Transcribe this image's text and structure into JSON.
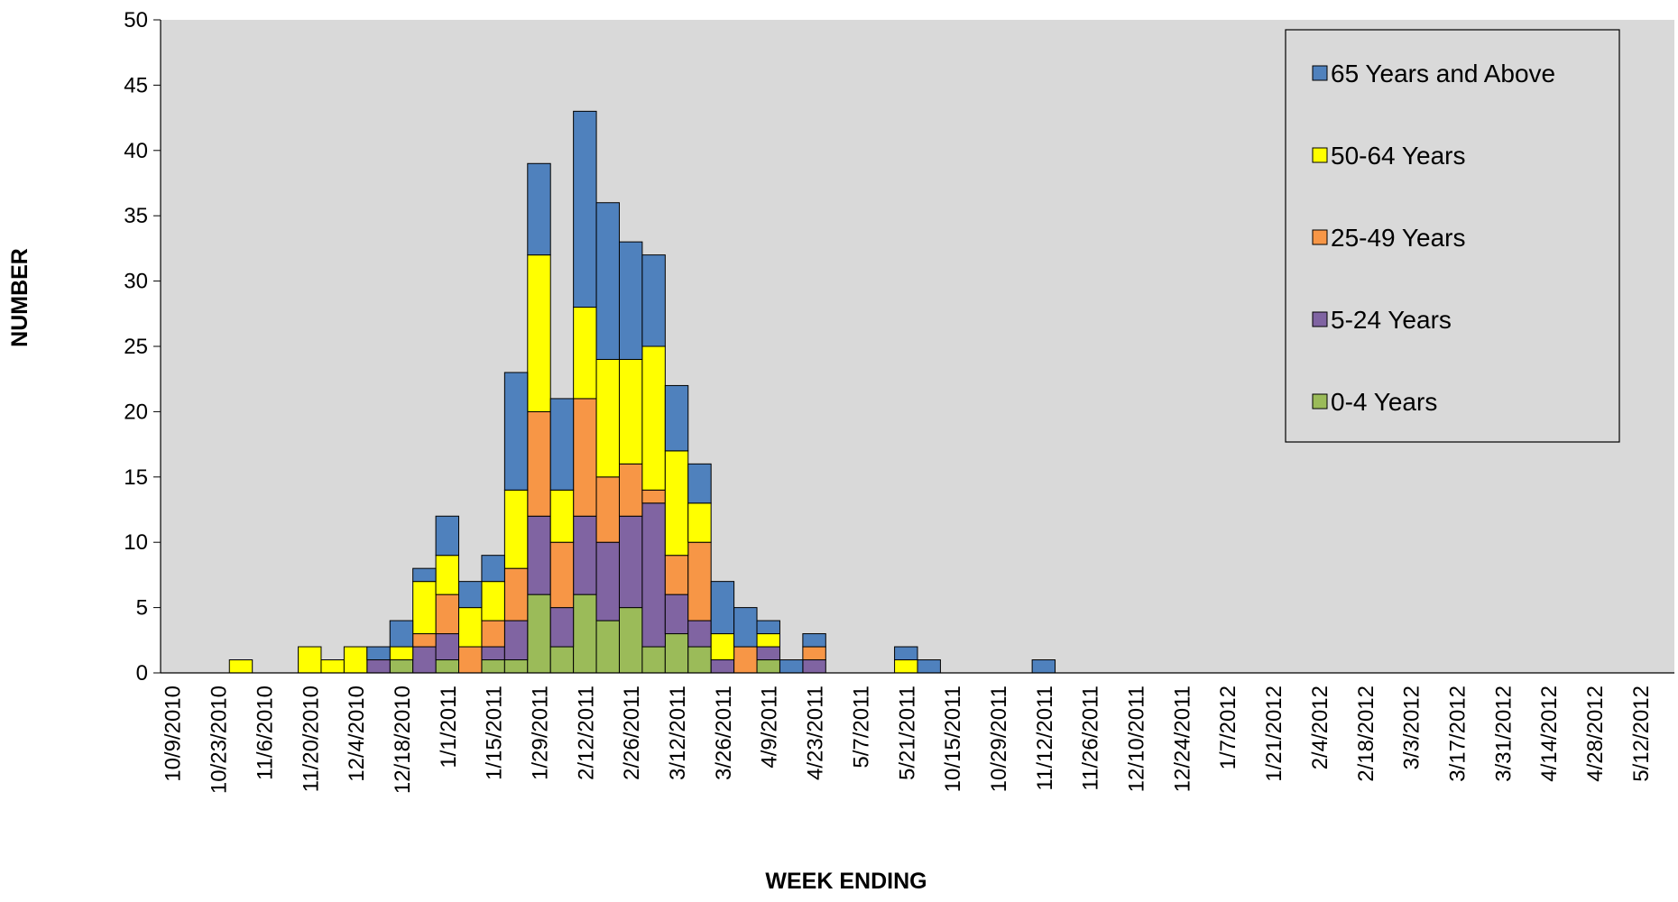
{
  "chart_data": {
    "type": "stacked_bar",
    "x_label": "WEEK ENDING",
    "y_label": "NUMBER",
    "categories": [
      "10/9/2010",
      null,
      "10/23/2010",
      null,
      "11/6/2010",
      null,
      "11/20/2010",
      null,
      "12/4/2010",
      null,
      "12/18/2010",
      null,
      "1/1/2011",
      null,
      "1/15/2011",
      null,
      "1/29/2011",
      null,
      "2/12/2011",
      null,
      "2/26/2011",
      null,
      "3/12/2011",
      null,
      "3/26/2011",
      null,
      "4/9/2011",
      null,
      "4/23/2011",
      null,
      "5/7/2011",
      null,
      "5/21/2011",
      null,
      "10/15/2011",
      null,
      "10/29/2011",
      null,
      "11/12/2011",
      null,
      "11/26/2011",
      null,
      "12/10/2011",
      null,
      "12/24/2011",
      null,
      "1/7/2012",
      null,
      "1/21/2012",
      null,
      "2/4/2012",
      null,
      "2/18/2012",
      null,
      "3/3/2012",
      null,
      "3/17/2012",
      null,
      "3/31/2012",
      null,
      "4/14/2012",
      null,
      "4/28/2012",
      null,
      "5/12/2012",
      null
    ],
    "series": [
      {
        "name": "0-4 Years",
        "color": "#9bbb59",
        "values": [
          0,
          0,
          0,
          0,
          0,
          0,
          0,
          0,
          0,
          0,
          1,
          0,
          1,
          0,
          1,
          1,
          6,
          2,
          6,
          4,
          5,
          2,
          3,
          2,
          0,
          0,
          1,
          0,
          0,
          0,
          0,
          0,
          0,
          0,
          0,
          0,
          0,
          0,
          0,
          0,
          0,
          0,
          0,
          0,
          0,
          0,
          0,
          0,
          0,
          0,
          0,
          0,
          0,
          0,
          0,
          0,
          0,
          0,
          0,
          0,
          0,
          0,
          0,
          0,
          0,
          0
        ]
      },
      {
        "name": "5-24 Years",
        "color": "#8064a2",
        "values": [
          0,
          0,
          0,
          0,
          0,
          0,
          0,
          0,
          0,
          1,
          0,
          2,
          2,
          0,
          1,
          3,
          6,
          3,
          6,
          6,
          7,
          11,
          3,
          2,
          1,
          0,
          1,
          0,
          1,
          0,
          0,
          0,
          0,
          0,
          0,
          0,
          0,
          0,
          0,
          0,
          0,
          0,
          0,
          0,
          0,
          0,
          0,
          0,
          0,
          0,
          0,
          0,
          0,
          0,
          0,
          0,
          0,
          0,
          0,
          0,
          0,
          0,
          0,
          0,
          0,
          0
        ]
      },
      {
        "name": "25-49 Years",
        "color": "#f79646",
        "values": [
          0,
          0,
          0,
          0,
          0,
          0,
          0,
          0,
          0,
          0,
          0,
          1,
          3,
          2,
          2,
          4,
          8,
          5,
          9,
          5,
          4,
          1,
          3,
          6,
          0,
          2,
          0,
          0,
          1,
          0,
          0,
          0,
          0,
          0,
          0,
          0,
          0,
          0,
          0,
          0,
          0,
          0,
          0,
          0,
          0,
          0,
          0,
          0,
          0,
          0,
          0,
          0,
          0,
          0,
          0,
          0,
          0,
          0,
          0,
          0,
          0,
          0,
          0,
          0,
          0,
          0
        ]
      },
      {
        "name": "50-64 Years",
        "color": "#ffff00",
        "values": [
          0,
          0,
          0,
          1,
          0,
          0,
          2,
          1,
          2,
          0,
          1,
          4,
          3,
          3,
          3,
          6,
          12,
          4,
          7,
          9,
          8,
          11,
          8,
          3,
          2,
          0,
          1,
          0,
          0,
          0,
          0,
          0,
          1,
          0,
          0,
          0,
          0,
          0,
          0,
          0,
          0,
          0,
          0,
          0,
          0,
          0,
          0,
          0,
          0,
          0,
          0,
          0,
          0,
          0,
          0,
          0,
          0,
          0,
          0,
          0,
          0,
          0,
          0,
          0,
          0,
          0
        ]
      },
      {
        "name": "65 Years and Above",
        "color": "#4f81bd",
        "values": [
          0,
          0,
          0,
          0,
          0,
          0,
          0,
          0,
          0,
          1,
          2,
          1,
          3,
          2,
          2,
          9,
          7,
          7,
          15,
          12,
          9,
          7,
          5,
          3,
          4,
          3,
          1,
          1,
          1,
          0,
          0,
          0,
          1,
          1,
          0,
          0,
          0,
          0,
          1,
          0,
          0,
          0,
          0,
          0,
          0,
          0,
          0,
          0,
          0,
          0,
          0,
          0,
          0,
          0,
          0,
          0,
          0,
          0,
          0,
          0,
          0,
          0,
          0,
          0,
          0,
          0
        ]
      }
    ],
    "ylim": [
      0,
      50
    ],
    "yticks": [
      0,
      5,
      10,
      15,
      20,
      25,
      30,
      35,
      40,
      45,
      50
    ],
    "grid": false,
    "legend": "top-right",
    "plot_background": "#d9d9d9"
  }
}
